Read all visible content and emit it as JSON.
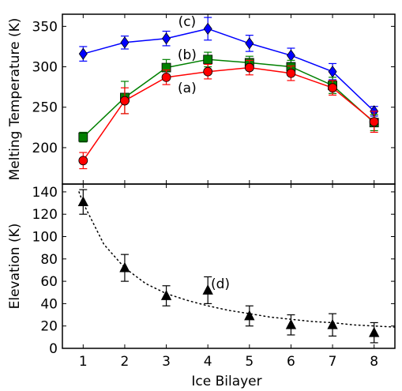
{
  "chart_data": [
    {
      "type": "line",
      "xlabel": "",
      "ylabel": "Melting Temperature (K)",
      "xlim": [
        0.5,
        8.5
      ],
      "ylim": [
        155,
        365
      ],
      "x": [
        1,
        2,
        3,
        4,
        5,
        6,
        7,
        8
      ],
      "yticks": [
        200,
        250,
        300,
        350
      ],
      "series": [
        {
          "key": "c",
          "color": "#0000ff",
          "marker": "diamond",
          "values": [
            316,
            330,
            335,
            347,
            329,
            314,
            294,
            245
          ],
          "errors": [
            9,
            8,
            9,
            14,
            10,
            9,
            10,
            6
          ]
        },
        {
          "key": "b",
          "color": "#008000",
          "marker": "square",
          "values": [
            213,
            262,
            299,
            309,
            305,
            300,
            277,
            231
          ],
          "errors": [
            6,
            20,
            10,
            9,
            8,
            8,
            10,
            10
          ]
        },
        {
          "key": "a",
          "color": "#ff0000",
          "marker": "circle",
          "values": [
            184,
            258,
            287,
            294,
            299,
            292,
            274,
            232
          ],
          "errors": [
            10,
            16,
            9,
            9,
            9,
            9,
            9,
            13
          ]
        }
      ],
      "annotations": [
        {
          "text": "(c)",
          "x": 3.5,
          "y": 356
        },
        {
          "text": "(b)",
          "x": 3.5,
          "y": 315
        },
        {
          "text": "(a)",
          "x": 3.5,
          "y": 274
        }
      ]
    },
    {
      "type": "scatter",
      "xlabel": "Ice Bilayer",
      "ylabel": "Elevation (K)",
      "xlim": [
        0.5,
        8.5
      ],
      "ylim": [
        0,
        147
      ],
      "x": [
        1,
        2,
        3,
        4,
        5,
        6,
        7,
        8
      ],
      "xticks": [
        "1",
        "2",
        "3",
        "4",
        "5",
        "6",
        "7",
        "8"
      ],
      "yticks": [
        0,
        20,
        40,
        60,
        80,
        100,
        120,
        140
      ],
      "series": [
        {
          "key": "d",
          "color": "#000000",
          "marker": "triangle",
          "values": [
            131,
            72,
            47,
            52,
            29,
            21,
            21,
            14
          ],
          "errors": [
            11,
            12,
            9,
            12,
            9,
            9,
            10,
            9
          ]
        }
      ],
      "fit": {
        "style": "dotted",
        "x": [
          0.9,
          1,
          1.5,
          2,
          2.5,
          3,
          3.5,
          4,
          4.5,
          5,
          5.5,
          6,
          6.5,
          7,
          7.5,
          8,
          8.5
        ],
        "y": [
          140,
          130,
          93,
          72,
          58,
          49,
          43,
          38,
          34,
          31,
          28,
          26,
          24,
          23,
          21,
          20,
          19
        ]
      },
      "annotations": [
        {
          "text": "(d)",
          "x": 4.3,
          "y": 58
        }
      ]
    }
  ]
}
